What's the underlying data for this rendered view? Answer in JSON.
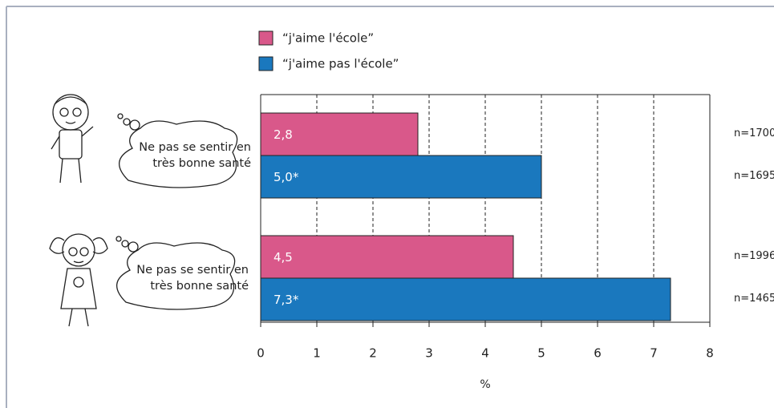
{
  "chart_data": {
    "type": "bar",
    "orientation": "horizontal",
    "categories": [
      "Ne pas se sentir en très bonne santé",
      "Ne pas se sentir en très bonne santé"
    ],
    "series": [
      {
        "name": "“j'aime l'école”",
        "color": "#d9588a",
        "values": [
          2.8,
          4.5
        ],
        "value_labels": [
          "2,8",
          "4,5"
        ],
        "n": [
          "n=1700",
          "n=1996"
        ]
      },
      {
        "name": "“j'aime pas l'école”",
        "color": "#1a78be",
        "values": [
          5.0,
          7.3
        ],
        "value_labels": [
          "5,0*",
          "7,3*"
        ],
        "n": [
          "n=1695",
          "n=1465"
        ]
      }
    ],
    "xlim": [
      0,
      8
    ],
    "xticks": [
      0,
      1,
      2,
      3,
      4,
      5,
      6,
      7,
      8
    ],
    "xlabel": "%",
    "grid": true
  }
}
